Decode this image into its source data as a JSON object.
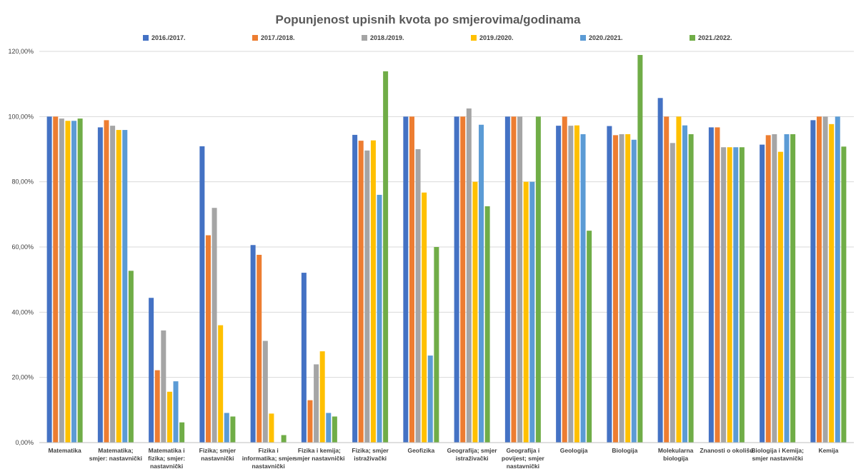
{
  "chart_data": {
    "type": "bar",
    "title": "Popunjenost upisnih kvota po smjerovima/godinama",
    "xlabel": "",
    "ylabel": "",
    "ylim": [
      0,
      120
    ],
    "yticks": [
      "0,00%",
      "20,00%",
      "40,00%",
      "60,00%",
      "80,00%",
      "100,00%",
      "120,00%"
    ],
    "grid": true,
    "legend_position": "top",
    "categories": [
      [
        "Matematika"
      ],
      [
        "Matematika;",
        "smjer: nastavnički"
      ],
      [
        "Matematika i",
        "fizika; smjer:",
        "nastavnički"
      ],
      [
        "Fizika; smjer",
        "nastavnički"
      ],
      [
        "Fizika i",
        "informatika; smjer",
        "nastavnički"
      ],
      [
        "Fizika i kemija;",
        "smjer nastavnički"
      ],
      [
        "Fizika; smjer",
        "istraživački"
      ],
      [
        "Geofizika"
      ],
      [
        "Geografija; smjer",
        "istraživački"
      ],
      [
        "Geografija i",
        "povijest; smjer",
        "nastavnički"
      ],
      [
        "Geologija"
      ],
      [
        "Biologija"
      ],
      [
        "Molekularna",
        "biologija"
      ],
      [
        "Znanosti o okolišu"
      ],
      [
        "Biologija i Kemija;",
        "smjer nastavnički"
      ],
      [
        "Kemija"
      ]
    ],
    "series": [
      {
        "name": "2016./2017.",
        "color": "#4472C4",
        "values": [
          100,
          96.7,
          44.4,
          90.9,
          60.6,
          52.1,
          94.4,
          100,
          100,
          100,
          97.2,
          97.1,
          105.7,
          96.7,
          91.4,
          98.9
        ]
      },
      {
        "name": "2017./2018.",
        "color": "#ED7D31",
        "values": [
          100,
          98.9,
          22.2,
          63.6,
          57.6,
          13.0,
          92.6,
          100,
          100,
          100,
          100,
          94.3,
          100,
          96.7,
          94.3,
          100
        ]
      },
      {
        "name": "2018./2019.",
        "color": "#A5A5A5",
        "values": [
          99.4,
          97.2,
          34.4,
          72.0,
          31.2,
          24.0,
          89.6,
          90.0,
          102.5,
          100,
          97.2,
          94.6,
          91.9,
          90.6,
          94.6,
          100
        ]
      },
      {
        "name": "2019./2020.",
        "color": "#FFC000",
        "values": [
          98.7,
          95.9,
          15.6,
          36.0,
          8.9,
          28.0,
          92.7,
          76.7,
          80.0,
          80.0,
          97.3,
          94.6,
          100,
          90.6,
          89.2,
          97.7
        ]
      },
      {
        "name": "2020./2021.",
        "color": "#5B9BD5",
        "values": [
          98.7,
          95.9,
          18.8,
          9.1,
          null,
          9.1,
          76.0,
          26.7,
          97.5,
          80.0,
          94.6,
          92.9,
          97.3,
          90.6,
          94.6,
          100
        ]
      },
      {
        "name": "2021./2022.",
        "color": "#70AD47",
        "values": [
          99.4,
          52.7,
          6.2,
          8.0,
          2.3,
          8.0,
          113.9,
          60.0,
          72.5,
          100,
          65.0,
          118.9,
          94.6,
          90.6,
          94.6,
          90.8
        ]
      }
    ]
  }
}
